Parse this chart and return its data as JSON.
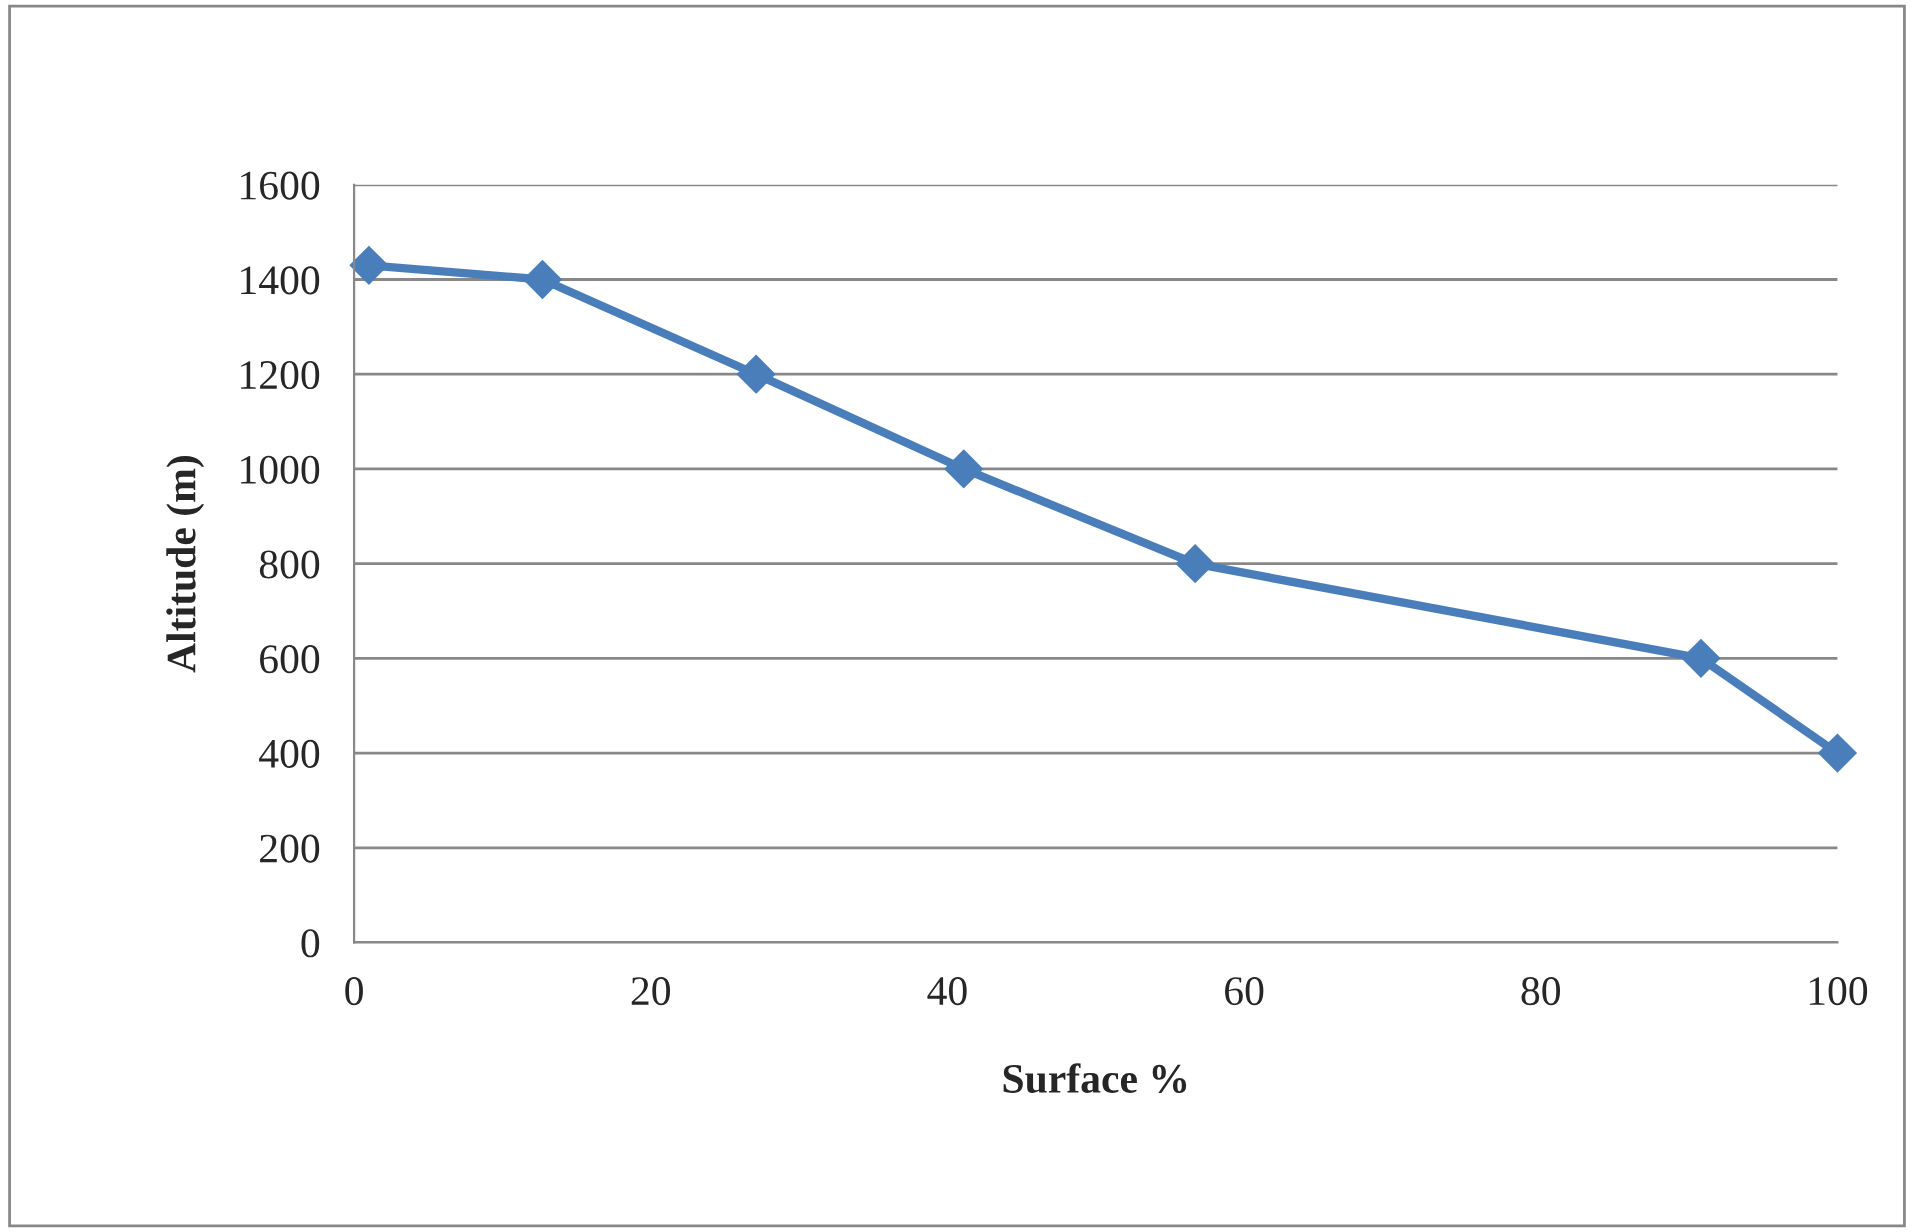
{
  "chart_data": {
    "type": "line",
    "xlabel": "Surface %",
    "ylabel": "Altitude (m)",
    "x": [
      1,
      12.7,
      27.1,
      41.1,
      56.7,
      90.8,
      100
    ],
    "series": [
      {
        "color": "#4a7ebb",
        "values": [
          1430,
          1400,
          1200,
          1000,
          800,
          600,
          400
        ]
      }
    ],
    "xlim": [
      0,
      100
    ],
    "xticks": [
      0,
      20,
      40,
      60,
      80,
      100
    ],
    "ylim": [
      0,
      1600
    ],
    "yticks": [
      0,
      200,
      400,
      600,
      800,
      1000,
      1200,
      1400,
      1600
    ],
    "grid": "y",
    "marker": "diamond",
    "line_style": "solid",
    "legend": false
  }
}
